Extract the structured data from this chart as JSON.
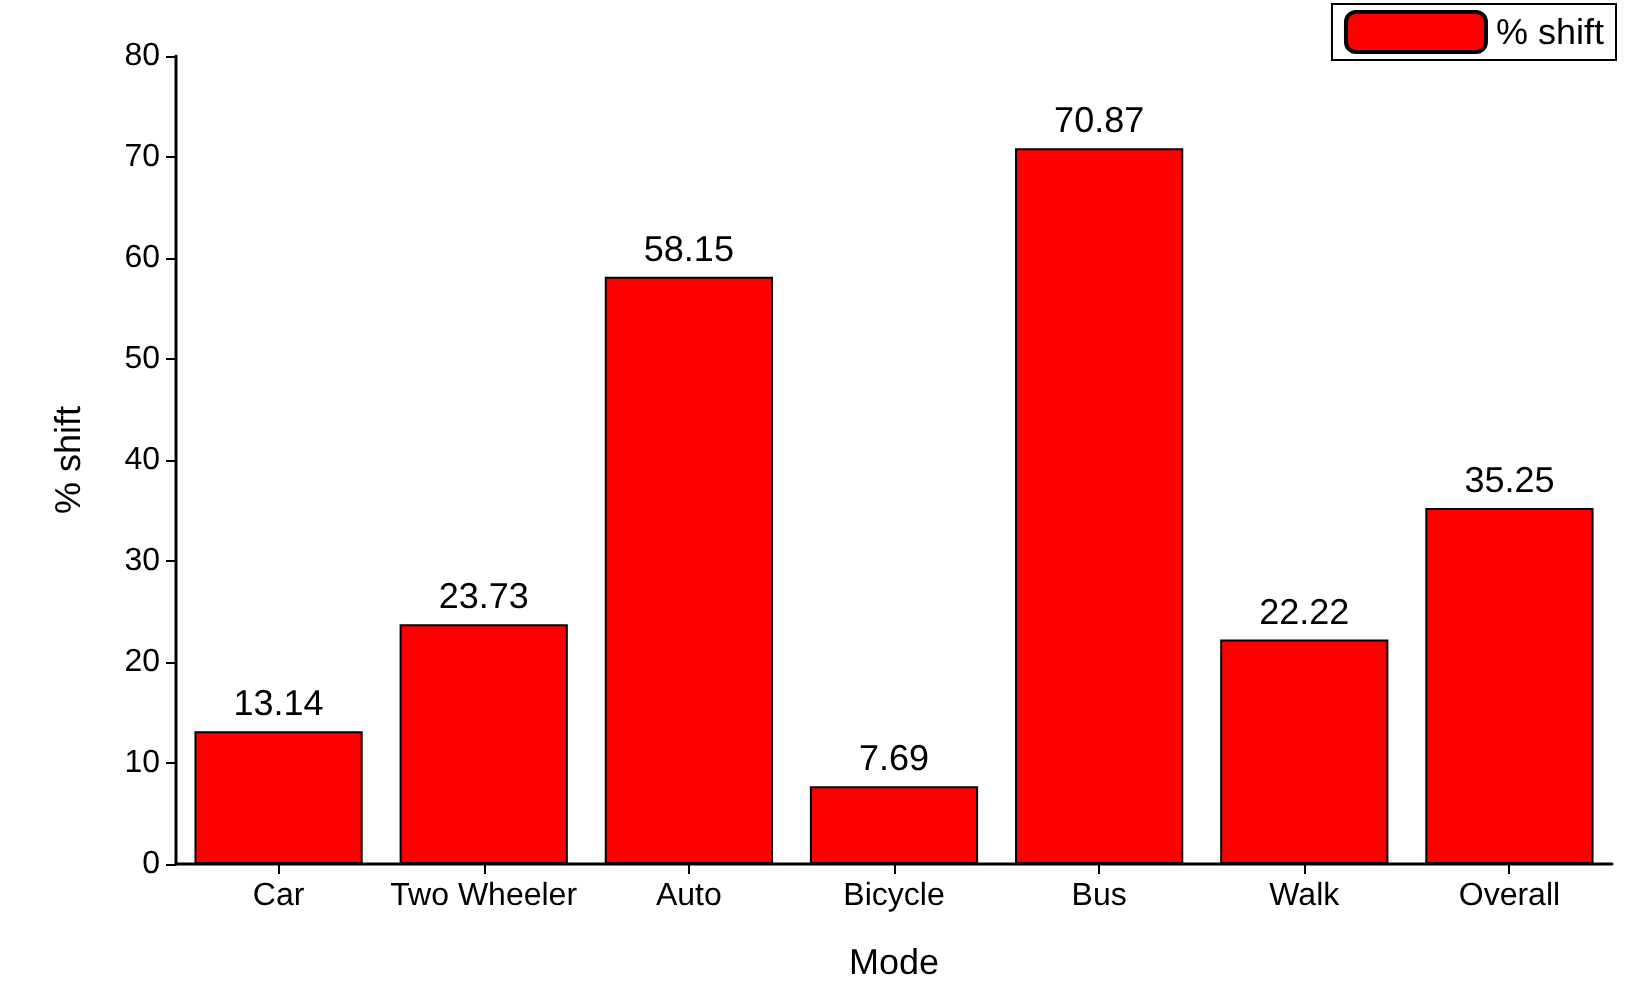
{
  "chart_data": {
    "type": "bar",
    "xlabel": "Mode",
    "ylabel": "% shift",
    "categories": [
      "Car",
      "Two Wheeler",
      "Auto",
      "Bicycle",
      "Bus",
      "Walk",
      "Overall"
    ],
    "series": [
      {
        "name": "% shift",
        "color": "#ff0000",
        "values": [
          13.14,
          23.73,
          58.15,
          7.69,
          70.87,
          22.22,
          35.25
        ]
      }
    ],
    "ylim": [
      0,
      80
    ],
    "yticks": [
      0,
      10,
      20,
      30,
      40,
      50,
      60,
      70,
      80
    ],
    "data_labels": true,
    "legend": "top right",
    "grid": false
  }
}
